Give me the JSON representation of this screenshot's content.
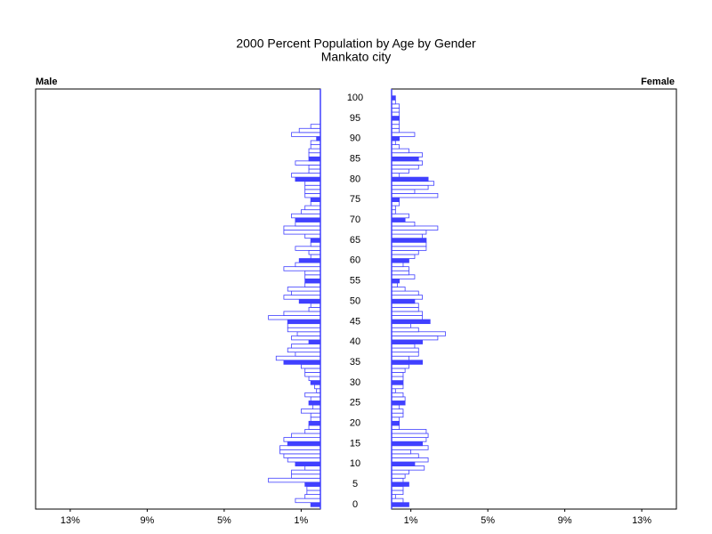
{
  "chart_data": {
    "type": "pyramid",
    "title": "2000 Percent Population by Age by Gender",
    "subtitle": "Mankato city",
    "categories": [
      0,
      null,
      null,
      null,
      null,
      5,
      null,
      null,
      null,
      null,
      10,
      null,
      null,
      null,
      null,
      15,
      null,
      null,
      null,
      null,
      20,
      null,
      null,
      null,
      null,
      25,
      null,
      null,
      null,
      null,
      30,
      null,
      null,
      null,
      null,
      35,
      null,
      null,
      null,
      null,
      40,
      null,
      null,
      null,
      null,
      45,
      null,
      null,
      null,
      null,
      50,
      null,
      null,
      null,
      null,
      55,
      null,
      null,
      null,
      null,
      60,
      null,
      null,
      null,
      null,
      65,
      null,
      null,
      null,
      null,
      70,
      null,
      null,
      null,
      null,
      75,
      null,
      null,
      null,
      null,
      80,
      null,
      null,
      null,
      null,
      85,
      null,
      null,
      null,
      null,
      90,
      null,
      null,
      null,
      null,
      95,
      null,
      null,
      null,
      null,
      100
    ],
    "series": [
      {
        "name": "Male",
        "color": "#4040ff",
        "values": [
          0.5,
          1.3,
          0.8,
          0.7,
          0.7,
          0.8,
          2.7,
          1.5,
          1.5,
          0.8,
          1.3,
          1.7,
          1.9,
          2.1,
          2.1,
          1.7,
          1.9,
          1.5,
          0.8,
          0.6,
          0.6,
          0.5,
          0.5,
          1.0,
          0.4,
          0.6,
          0.5,
          0.8,
          0.2,
          0.3,
          0.5,
          0.6,
          0.8,
          0.8,
          1.0,
          1.9,
          2.3,
          1.3,
          1.7,
          1.5,
          0.6,
          1.5,
          1.2,
          1.7,
          1.7,
          1.7,
          2.7,
          1.9,
          0.6,
          0.5,
          1.1,
          1.9,
          1.5,
          1.7,
          0.8,
          0.8,
          0.8,
          0.8,
          1.9,
          1.3,
          1.1,
          0.5,
          0.6,
          1.3,
          0.5,
          0.5,
          0.8,
          1.9,
          1.9,
          1.3,
          1.3,
          1.5,
          1.0,
          0.8,
          0.5,
          0.5,
          0.8,
          0.8,
          0.8,
          0.8,
          1.3,
          1.5,
          0.6,
          0.6,
          1.3,
          0.6,
          0.6,
          0.6,
          0.5,
          0.5,
          0.2,
          1.5,
          1.1,
          0.5,
          0,
          0,
          0,
          0,
          0,
          0,
          0
        ]
      },
      {
        "name": "Female",
        "color": "#4040ff",
        "values": [
          0.9,
          0.6,
          0.2,
          0.6,
          0.6,
          0.9,
          0.6,
          0.7,
          0.9,
          1.7,
          1.2,
          1.9,
          1.4,
          1.0,
          1.9,
          1.6,
          1.8,
          1.9,
          1.8,
          0.4,
          0.4,
          0.4,
          0.6,
          0.6,
          0.4,
          0.7,
          0.7,
          0.6,
          0.2,
          0.6,
          0.6,
          0.6,
          0.6,
          0.7,
          0.9,
          1.6,
          0.9,
          1.4,
          1.4,
          1.2,
          1.6,
          2.4,
          2.8,
          1.4,
          1.0,
          2.0,
          1.6,
          1.6,
          1.4,
          1.4,
          1.2,
          1.6,
          1.4,
          0.7,
          0.3,
          0.4,
          1.2,
          0.9,
          0.9,
          0.6,
          0.9,
          1.2,
          1.4,
          1.8,
          1.8,
          1.8,
          1.6,
          1.8,
          2.4,
          1.2,
          0.7,
          0.9,
          0.2,
          0.2,
          0.4,
          0.4,
          2.4,
          1.2,
          1.9,
          2.2,
          1.9,
          0.4,
          0.9,
          1.4,
          1.6,
          1.4,
          1.6,
          0.9,
          0.4,
          0.2,
          0.4,
          1.2,
          0.4,
          0.4,
          0.4,
          0.4,
          0.4,
          0.4,
          0.4,
          0.2,
          0.2
        ]
      }
    ],
    "xlim": [
      0,
      14.8
    ],
    "xticks": [
      {
        "value": 1,
        "label": "1%"
      },
      {
        "value": 5,
        "label": "5%"
      },
      {
        "value": 9,
        "label": "9%"
      },
      {
        "value": 13,
        "label": "13%"
      }
    ]
  }
}
